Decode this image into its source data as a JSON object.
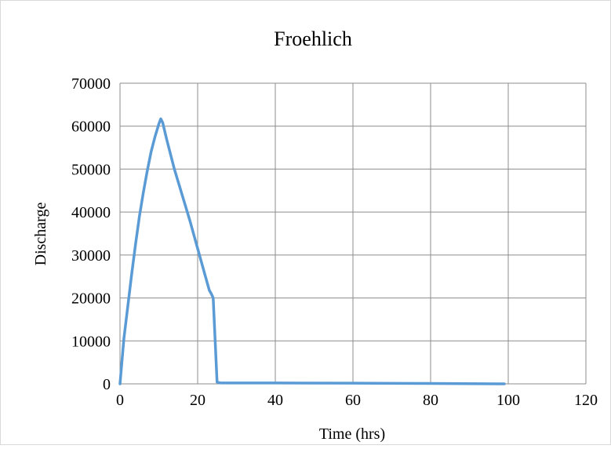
{
  "chart_data": {
    "type": "line",
    "title": "Froehlich",
    "xlabel": "Time (hrs)",
    "ylabel": "Discharge",
    "xlim": [
      0,
      120
    ],
    "ylim": [
      0,
      70000
    ],
    "x_ticks": [
      0,
      20,
      40,
      60,
      80,
      100,
      120
    ],
    "y_ticks": [
      0,
      10000,
      20000,
      30000,
      40000,
      50000,
      60000,
      70000
    ],
    "grid": true,
    "legend": "none",
    "series": [
      {
        "color": "#5B9BD5",
        "x": [
          0,
          1,
          2,
          3,
          4,
          5,
          6,
          7,
          8,
          9,
          10,
          10.5,
          11,
          12,
          14,
          16,
          18,
          20,
          22,
          23,
          23.5,
          24,
          25,
          26,
          40,
          60,
          80,
          99
        ],
        "y": [
          0,
          10500,
          18000,
          25500,
          32500,
          39000,
          44500,
          49500,
          54000,
          57500,
          60500,
          61700,
          60800,
          57000,
          50000,
          44000,
          38000,
          31500,
          25000,
          21800,
          21000,
          20000,
          400,
          200,
          200,
          150,
          100,
          0
        ]
      }
    ]
  }
}
